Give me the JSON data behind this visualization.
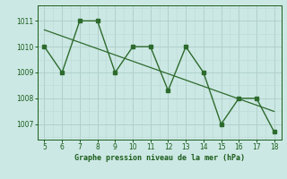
{
  "x": [
    5,
    6,
    7,
    8,
    9,
    10,
    11,
    12,
    13,
    14,
    15,
    16,
    17,
    18
  ],
  "y": [
    1010.0,
    1009.0,
    1011.0,
    1011.0,
    1009.0,
    1010.0,
    1010.0,
    1008.3,
    1010.0,
    1009.0,
    1007.0,
    1008.0,
    1008.0,
    1006.7
  ],
  "line_color": "#2d6b2d",
  "bg_color": "#cce8e4",
  "grid_color_major": "#b0d0cc",
  "grid_color_minor": "#c0dcd8",
  "xlabel": "Graphe pression niveau de la mer (hPa)",
  "xlabel_color": "#1a5c1a",
  "tick_color": "#1a5c1a",
  "ylim": [
    1006.4,
    1011.6
  ],
  "xlim": [
    4.6,
    18.4
  ],
  "yticks": [
    1007,
    1008,
    1009,
    1010,
    1011
  ],
  "xticks": [
    5,
    6,
    7,
    8,
    9,
    10,
    11,
    12,
    13,
    14,
    15,
    16,
    17,
    18
  ],
  "trend_color": "#2d6b2d"
}
